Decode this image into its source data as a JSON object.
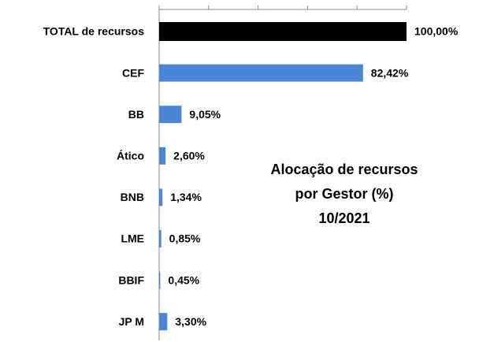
{
  "chart_data": {
    "type": "barh",
    "title": [
      "Alocação de recursos",
      "por Gestor (%)",
      "10/2021"
    ],
    "categories": [
      "TOTAL de recursos",
      "CEF",
      "BB",
      "Ático",
      "BNB",
      "LME",
      "BBIF",
      "JP M"
    ],
    "values": [
      100,
      82.42,
      9.05,
      2.6,
      1.34,
      0.85,
      0.45,
      3.3
    ],
    "value_labels": [
      "100,00%",
      "82,42%",
      "9,05%",
      "2,60%",
      "1,34%",
      "0,85%",
      "0,45%",
      "3,30%"
    ],
    "colors": [
      "#000000",
      "#4a86d4",
      "#4a86d4",
      "#4a86d4",
      "#4a86d4",
      "#4a86d4",
      "#4a86d4",
      "#4a86d4"
    ],
    "xlim": [
      0,
      100
    ],
    "xticks": [
      0,
      20,
      40,
      60,
      80,
      100
    ]
  }
}
